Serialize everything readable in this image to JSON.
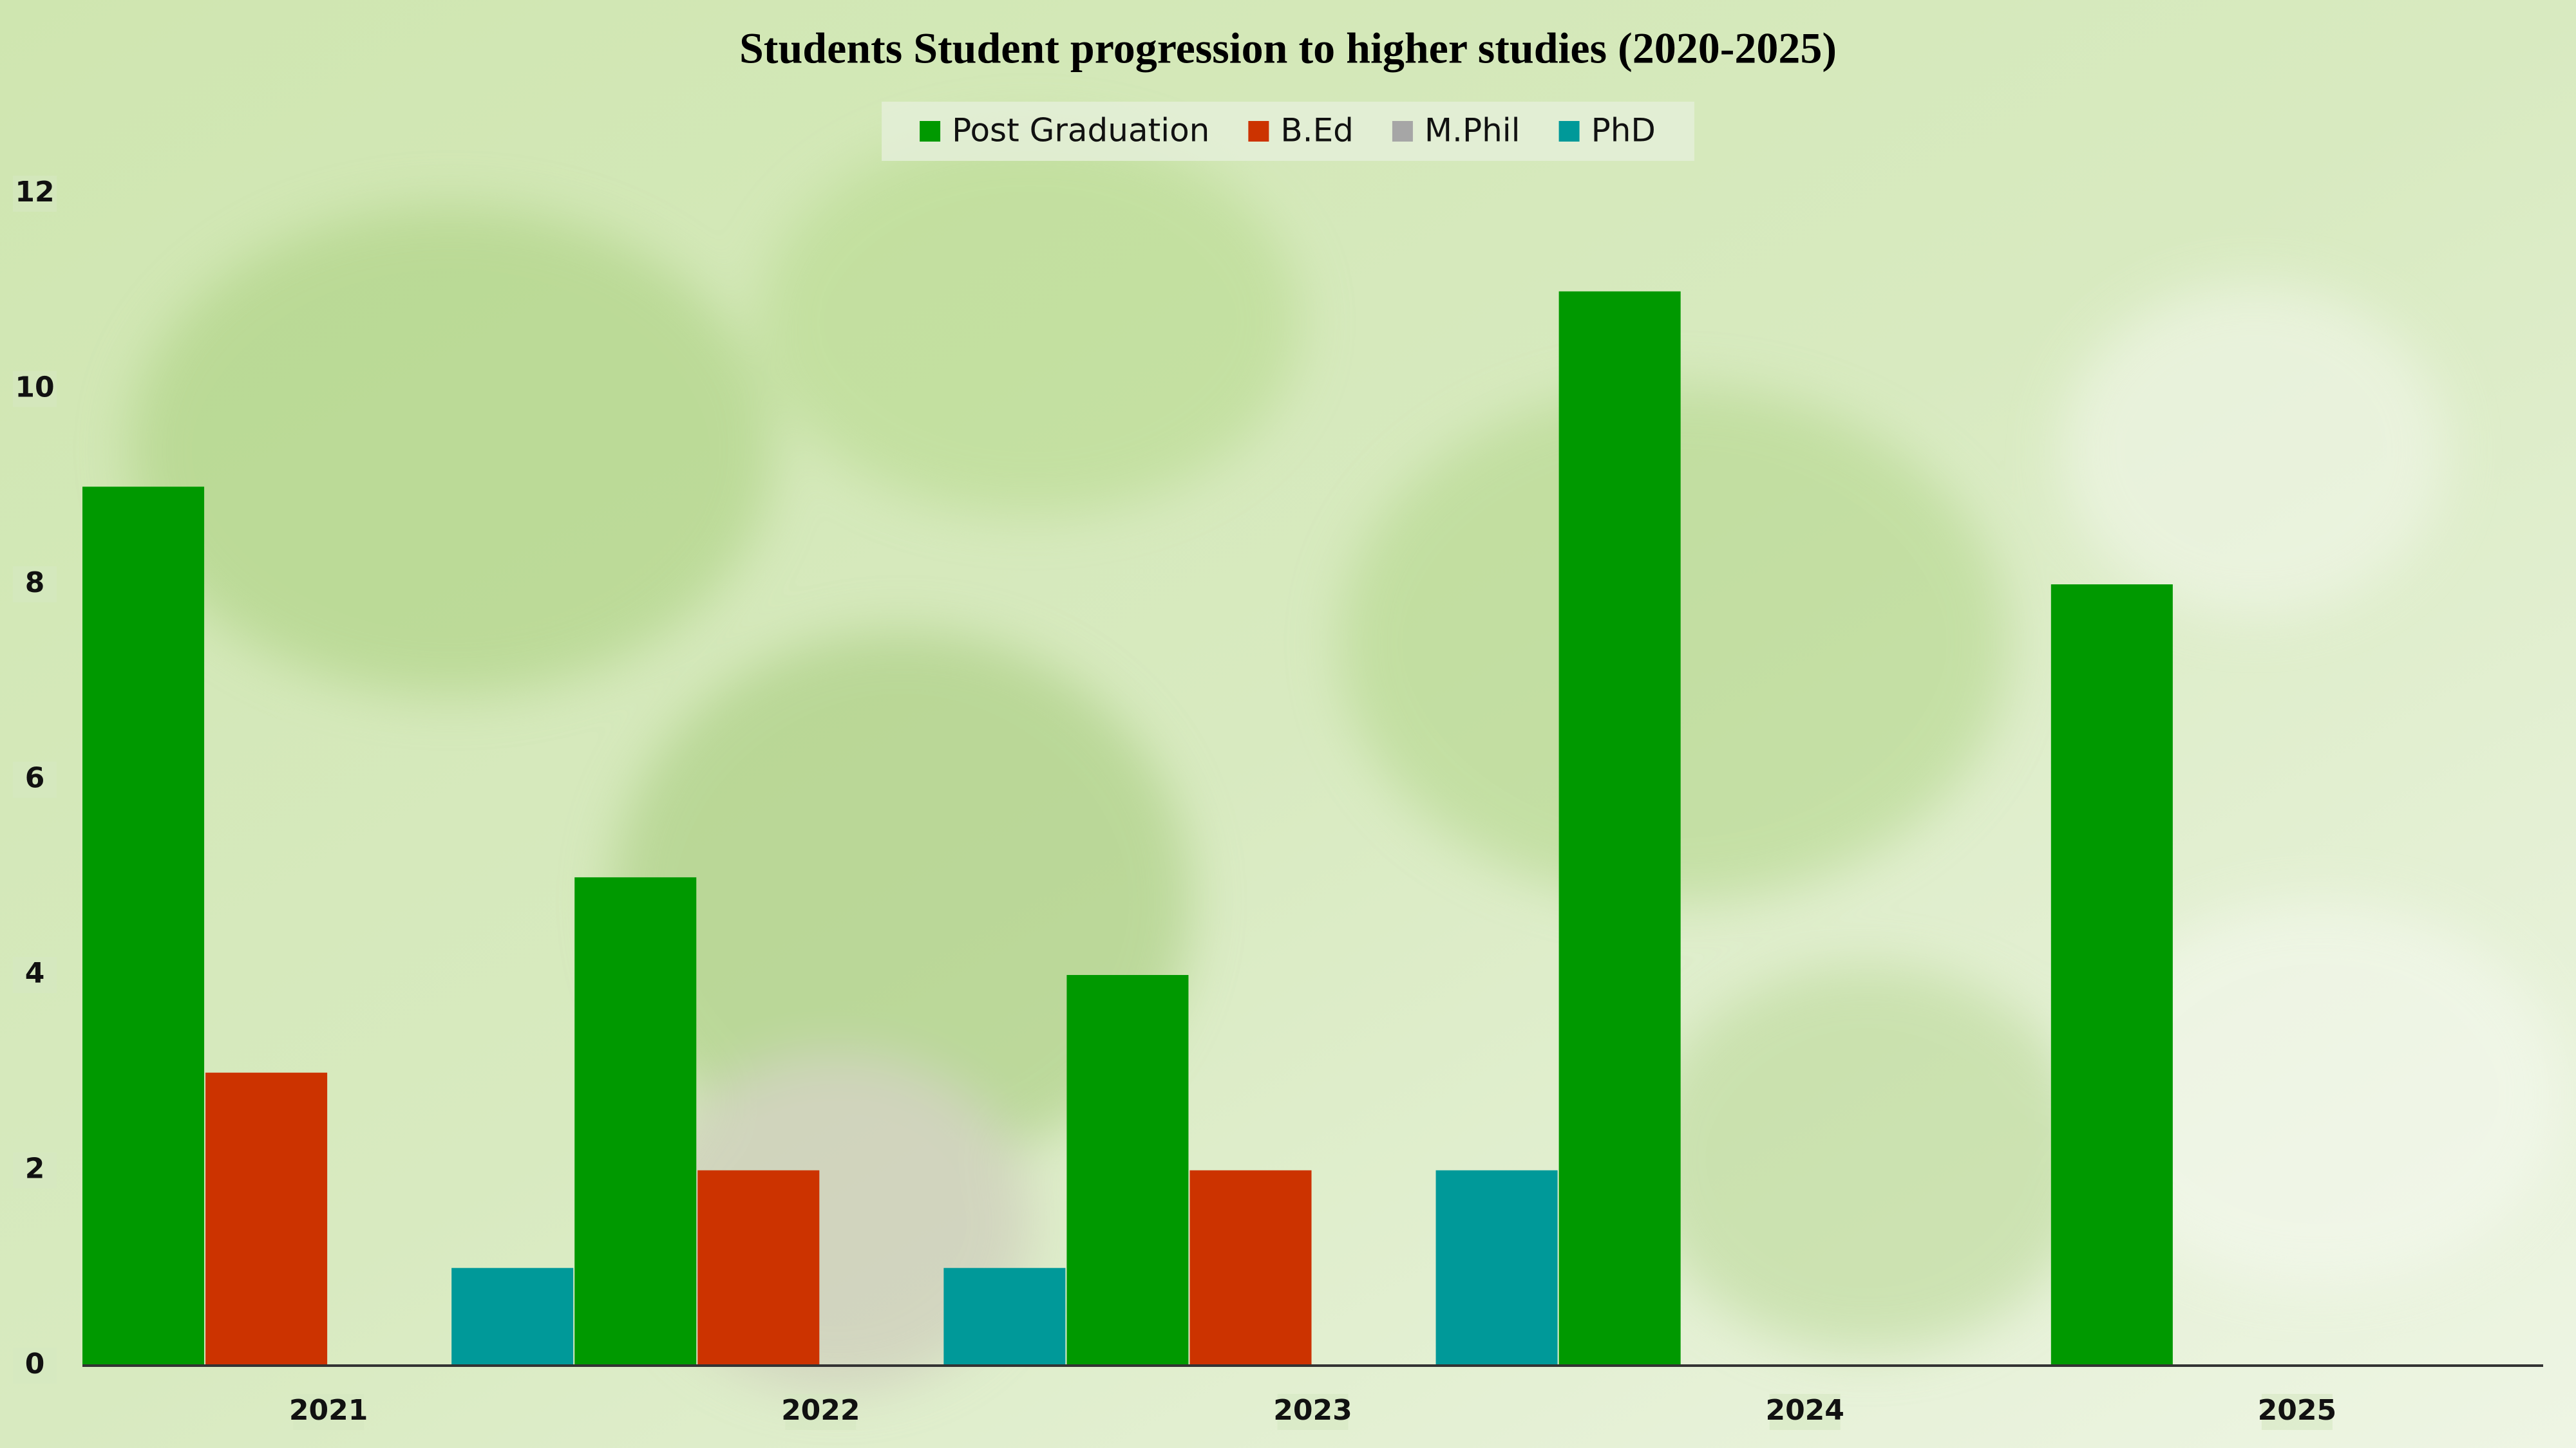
{
  "chart_data": {
    "type": "bar",
    "title": "Students Student progression to higher studies (2020-2025)",
    "categories": [
      "2021",
      "2022",
      "2023",
      "2024",
      "2025"
    ],
    "series": [
      {
        "name": "Post Graduation",
        "color": "#009900",
        "values": [
          9,
          5,
          4,
          11,
          8
        ]
      },
      {
        "name": "B.Ed",
        "color": "#cc3300",
        "values": [
          3,
          2,
          2,
          0,
          0
        ]
      },
      {
        "name": "M.Phil",
        "color": "#a6a6a6",
        "values": [
          0,
          0,
          0,
          0,
          0
        ]
      },
      {
        "name": "PhD",
        "color": "#009999",
        "values": [
          1,
          1,
          2,
          0,
          0
        ]
      }
    ],
    "ylim": [
      0,
      12
    ],
    "yticks": [
      0,
      2,
      4,
      6,
      8,
      10,
      12
    ],
    "grid": false,
    "legend": "top"
  }
}
